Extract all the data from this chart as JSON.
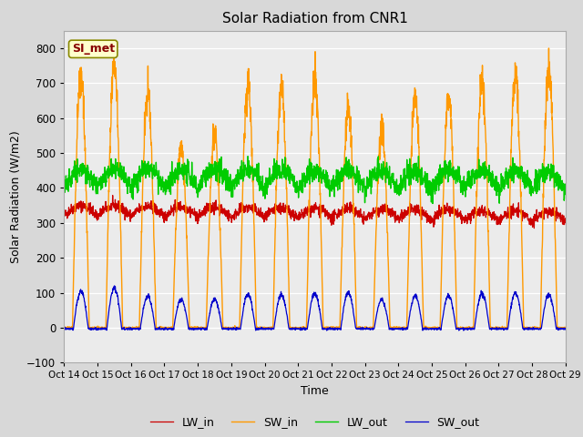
{
  "title": "Solar Radiation from CNR1",
  "xlabel": "Time",
  "ylabel": "Solar Radiation (W/m2)",
  "ylim": [
    -100,
    850
  ],
  "yticks": [
    -100,
    0,
    100,
    200,
    300,
    400,
    500,
    600,
    700,
    800
  ],
  "fig_bg_color": "#d8d8d8",
  "plot_bg_color": "#ebebeb",
  "annotation_text": "SI_met",
  "annotation_bg": "#ffffcc",
  "annotation_border": "#888800",
  "annotation_text_color": "#880000",
  "colors": {
    "LW_in": "#cc0000",
    "SW_in": "#ff9900",
    "LW_out": "#00cc00",
    "SW_out": "#0000cc"
  },
  "n_days": 15,
  "n_points_per_day": 144,
  "xtick_labels": [
    "Oct 14",
    "Oct 15",
    "Oct 16",
    "Oct 17",
    "Oct 18",
    "Oct 19",
    "Oct 20",
    "Oct 21",
    "Oct 22",
    "Oct 23",
    "Oct 24",
    "Oct 25",
    "Oct 26",
    "Oct 27",
    "Oct 28",
    "Oct 29"
  ]
}
